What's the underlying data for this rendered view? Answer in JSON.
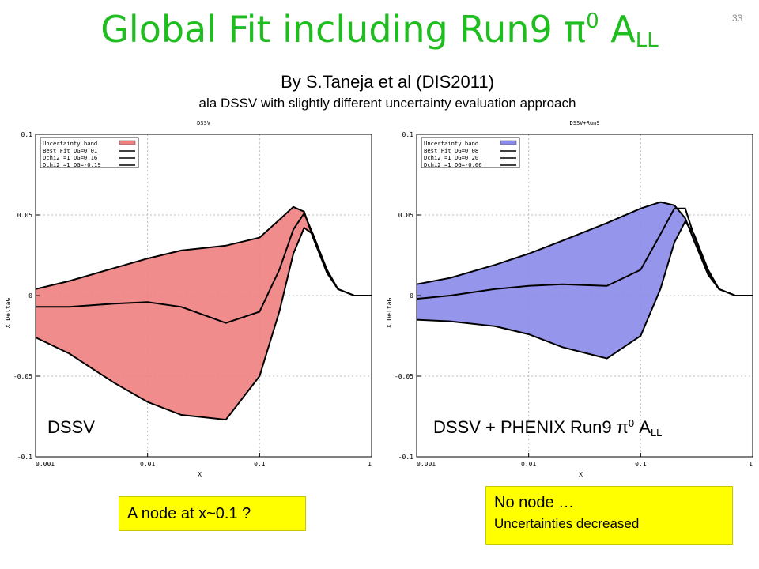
{
  "slide": {
    "title_main": "Global Fit including Run9 ",
    "title_pi": "π",
    "title_sup": "0",
    "title_a": " A",
    "title_sub": "LL",
    "page_number": "33",
    "subtitle": "By S.Taneja et al (DIS2011)",
    "subtitle2": "ala DSSV with slightly different uncertainty evaluation approach",
    "callout_left": "A node at x~0.1 ?",
    "callout_right_line1": "No node …",
    "callout_right_line2": "Uncertainties decreased",
    "colors": {
      "title": "#1fbd1f",
      "callout": "#ffff00",
      "band_left": "#f08080",
      "band_right": "#8a8aea"
    }
  },
  "chart_data": [
    {
      "type": "area",
      "title": "DSSV",
      "overlay_label": "DSSV",
      "xlabel": "X",
      "ylabel": "X DeltaG",
      "x_scale": "log",
      "xlim": [
        0.001,
        1
      ],
      "ylim": [
        -0.1,
        0.1
      ],
      "x_ticks": [
        "0.001",
        "0.01",
        "0.1",
        "1"
      ],
      "y_ticks": [
        "-0.1",
        "-0.05",
        "0",
        "0.05",
        "0.1"
      ],
      "grid": true,
      "legend_position": "top-left",
      "legend": [
        "Uncertainty band",
        "Best Fit DG=0.01",
        "Dchi2 =1 DG=0.16",
        "Dchi2 =1 DG=-0.19"
      ],
      "band_color": "#f08080",
      "x": [
        0.001,
        0.002,
        0.005,
        0.01,
        0.02,
        0.05,
        0.1,
        0.15,
        0.2,
        0.25,
        0.3,
        0.4,
        0.5,
        0.7,
        1.0
      ],
      "series": [
        {
          "name": "Uncertainty band upper",
          "values": [
            0.004,
            0.009,
            0.017,
            0.023,
            0.028,
            0.031,
            0.036,
            0.047,
            0.055,
            0.052,
            0.036,
            0.014,
            0.004,
            0.0,
            0.0
          ]
        },
        {
          "name": "Uncertainty band lower",
          "values": [
            -0.026,
            -0.036,
            -0.054,
            -0.066,
            -0.074,
            -0.077,
            -0.05,
            -0.01,
            0.026,
            0.042,
            0.038,
            0.016,
            0.004,
            0.0,
            0.0
          ]
        },
        {
          "name": "Best Fit DG=0.01",
          "values": [
            -0.007,
            -0.007,
            -0.005,
            -0.004,
            -0.007,
            -0.017,
            -0.01,
            0.016,
            0.041,
            0.051,
            0.038,
            0.015,
            0.004,
            0.0,
            0.0
          ]
        },
        {
          "name": "Dchi2 =1 DG=0.16",
          "values": [
            0.004,
            0.009,
            0.017,
            0.023,
            0.028,
            0.031,
            0.036,
            0.047,
            0.055,
            0.052,
            0.036,
            0.014,
            0.004,
            0.0,
            0.0
          ]
        },
        {
          "name": "Dchi2 =1 DG=-0.19",
          "values": [
            -0.026,
            -0.036,
            -0.054,
            -0.066,
            -0.074,
            -0.077,
            -0.05,
            -0.01,
            0.026,
            0.042,
            0.038,
            0.016,
            0.004,
            0.0,
            0.0
          ]
        }
      ]
    },
    {
      "type": "area",
      "title": "DSSV+Run9",
      "overlay_label": "DSSV + PHENIX Run9 ",
      "overlay_pi": "π",
      "overlay_sup": "0",
      "overlay_a": " A",
      "overlay_sub": "LL",
      "xlabel": "X",
      "ylabel": "X DeltaG",
      "x_scale": "log",
      "xlim": [
        0.001,
        1
      ],
      "ylim": [
        -0.1,
        0.1
      ],
      "x_ticks": [
        "0.001",
        "0.01",
        "0.1",
        "1"
      ],
      "y_ticks": [
        "-0.1",
        "-0.05",
        "0",
        "0.05",
        "0.1"
      ],
      "grid": true,
      "legend_position": "top-left",
      "legend": [
        "Uncertainty band",
        "Best Fit DG=0.08",
        "Dchi2 =1 DG=0.20",
        "Dchi2 =1 DG=-0.06"
      ],
      "band_color": "#8a8aea",
      "x": [
        0.001,
        0.002,
        0.005,
        0.01,
        0.02,
        0.05,
        0.1,
        0.15,
        0.2,
        0.25,
        0.3,
        0.4,
        0.5,
        0.7,
        1.0
      ],
      "series": [
        {
          "name": "Uncertainty band upper",
          "values": [
            0.007,
            0.011,
            0.019,
            0.026,
            0.034,
            0.045,
            0.054,
            0.058,
            0.056,
            0.048,
            0.034,
            0.013,
            0.004,
            0.0,
            0.0
          ]
        },
        {
          "name": "Uncertainty band lower",
          "values": [
            -0.015,
            -0.016,
            -0.019,
            -0.024,
            -0.032,
            -0.039,
            -0.025,
            0.004,
            0.033,
            0.046,
            0.038,
            0.016,
            0.004,
            0.0,
            0.0
          ]
        },
        {
          "name": "Best Fit DG=0.08",
          "values": [
            -0.002,
            0.0,
            0.004,
            0.006,
            0.007,
            0.006,
            0.016,
            0.038,
            0.054,
            0.054,
            0.037,
            0.014,
            0.004,
            0.0,
            0.0
          ]
        },
        {
          "name": "Dchi2 =1 DG=0.20",
          "values": [
            0.007,
            0.011,
            0.019,
            0.026,
            0.034,
            0.045,
            0.054,
            0.058,
            0.056,
            0.048,
            0.034,
            0.013,
            0.004,
            0.0,
            0.0
          ]
        },
        {
          "name": "Dchi2 =1 DG=-0.06",
          "values": [
            -0.015,
            -0.016,
            -0.019,
            -0.024,
            -0.032,
            -0.039,
            -0.025,
            0.004,
            0.033,
            0.046,
            0.038,
            0.016,
            0.004,
            0.0,
            0.0
          ]
        }
      ]
    }
  ]
}
